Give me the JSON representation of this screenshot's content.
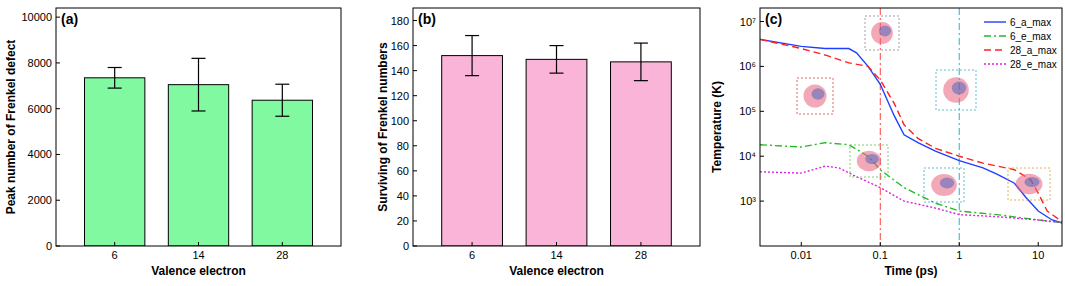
{
  "chart_data": [
    {
      "type": "bar",
      "title": "(a)",
      "x_label": "Valence electron",
      "y_label": "Peak number of Frenkel defect",
      "categories": [
        "6",
        "14",
        "28"
      ],
      "values": [
        7350,
        7050,
        6370
      ],
      "errors": [
        450,
        1150,
        700
      ],
      "color": "#80f9a0",
      "ylim": [
        0,
        10400
      ],
      "yticks": [
        0,
        2000,
        4000,
        6000,
        8000,
        10000
      ],
      "grid": false
    },
    {
      "type": "bar",
      "title": "(b)",
      "x_label": "Valence electron",
      "y_label": "Surviving of Frenkel numbers",
      "categories": [
        "6",
        "14",
        "28"
      ],
      "values": [
        152,
        149,
        147
      ],
      "errors": [
        16,
        11,
        15
      ],
      "color": "#fab4d8",
      "ylim": [
        0,
        190
      ],
      "yticks": [
        0,
        20,
        40,
        60,
        80,
        100,
        120,
        140,
        160,
        180
      ],
      "grid": false
    },
    {
      "type": "line",
      "title": "(c)",
      "x_label": "Time (ps)",
      "y_label": "Temperature (K)",
      "log": true,
      "xlim": [
        0.003,
        20
      ],
      "xticks": [
        0.01,
        0.1,
        1,
        10
      ],
      "ylim": [
        100,
        20000000
      ],
      "yticks": [
        {
          "value": 1000,
          "label": "10³"
        },
        {
          "value": 10000,
          "label": "10⁴"
        },
        {
          "value": 100000,
          "label": "10⁵"
        },
        {
          "value": 1000000,
          "label": "10⁶"
        },
        {
          "value": 10000000,
          "label": "10⁷"
        }
      ],
      "legend": "upper right",
      "grid": false,
      "reference_lines": [
        {
          "x": 0.1,
          "color": "#ff4040",
          "line_style": "dashdot"
        },
        {
          "x": 1,
          "color": "#1cb8cc",
          "line_style": "dashdot"
        }
      ],
      "series": [
        {
          "name": "6_a_max",
          "color": "#1f3fff",
          "line_style": "solid",
          "x": [
            0.003,
            0.01,
            0.02,
            0.04,
            0.05,
            0.07,
            0.1,
            0.15,
            0.2,
            0.3,
            0.5,
            1,
            2,
            3,
            5,
            7,
            10,
            15,
            20
          ],
          "values": [
            4000000,
            2800000,
            2500000,
            2500000,
            2000000,
            1000000,
            400000,
            80000,
            30000,
            20000,
            13000,
            8000,
            5500,
            4000,
            2500,
            1200,
            600,
            380,
            330
          ]
        },
        {
          "name": "6_e_max",
          "color": "#22bb22",
          "line_style": "dashdot",
          "x": [
            0.003,
            0.01,
            0.02,
            0.04,
            0.07,
            0.1,
            0.2,
            0.5,
            1,
            3,
            10,
            20
          ],
          "values": [
            18000,
            16000,
            20000,
            18000,
            10000,
            5000,
            2000,
            900,
            600,
            500,
            380,
            330
          ]
        },
        {
          "name": "28_a_max",
          "color": "#ff2020",
          "line_style": "dashed",
          "x": [
            0.003,
            0.01,
            0.02,
            0.04,
            0.07,
            0.1,
            0.15,
            0.2,
            0.3,
            0.5,
            1,
            2,
            5,
            8,
            10,
            13,
            20
          ],
          "values": [
            4000000,
            2500000,
            1800000,
            1200000,
            1000000,
            500000,
            150000,
            50000,
            25000,
            15000,
            10000,
            7000,
            5000,
            3000,
            1500,
            600,
            350
          ]
        },
        {
          "name": "28_e_max",
          "color": "#e020e0",
          "line_style": "dotted",
          "x": [
            0.003,
            0.01,
            0.02,
            0.03,
            0.05,
            0.1,
            0.2,
            0.5,
            1,
            3,
            10,
            20
          ],
          "values": [
            4500,
            4200,
            6000,
            5500,
            3500,
            2000,
            1000,
            700,
            500,
            450,
            380,
            330
          ]
        }
      ]
    }
  ]
}
